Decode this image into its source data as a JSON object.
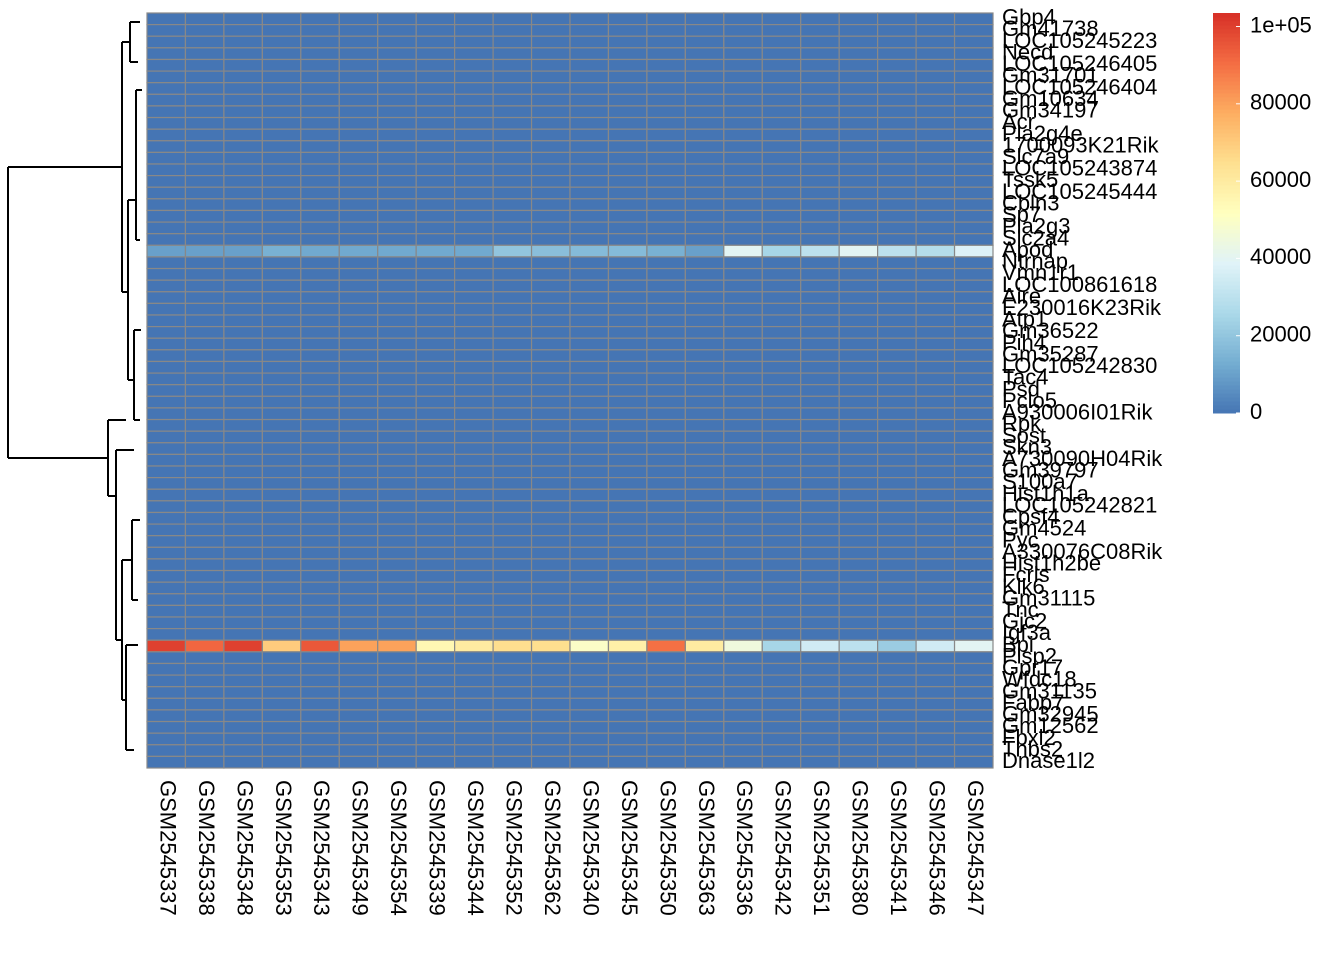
{
  "chart_data": {
    "type": "heatmap",
    "rows": [
      "Gbp4",
      "Gm41738",
      "LOC105245223",
      "Necd",
      "LOC105246405",
      "Gm31701",
      "LOC105246404",
      "Gm10634",
      "Gm34197",
      "Acr",
      "Pla2g4e",
      "1700093K21Rik",
      "Slc7a9",
      "LOC105243874",
      "Tssk5",
      "LOC105245444",
      "Cbln3",
      "Sp7",
      "Pla2g3",
      "Slc2a4",
      "Apod",
      "Ntrnap",
      "Vmn1r1",
      "LOC100861618",
      "Aire",
      "E230016K23Rik",
      "Atp1",
      "Gm36522",
      "Pih4",
      "Gm35287",
      "LOC105242830",
      "Tac4",
      "Psd",
      "Pclo5",
      "A930006I01Rik",
      "Rpk",
      "Sost",
      "Skn3",
      "A730090H04Rik",
      "Gm39797",
      "S100a7",
      "Hist1h1a",
      "LOC105242821",
      "Cpsf4",
      "Gm4524",
      "Pyc",
      "A330076C08Rik",
      "Hist1h2be",
      "Fcrls",
      "Klk6",
      "Gm31115",
      "Tnc",
      "Gjc2",
      "Igf3a",
      "Bpi",
      "Plsp2",
      "Gpr17",
      "Wfdc18",
      "Gm31135",
      "Fabp7",
      "Gm32945",
      "Gm12562",
      "Fbxl2",
      "Thbs2",
      "Dnase1l2"
    ],
    "columns": [
      "GSM2545337",
      "GSM2545338",
      "GSM2545348",
      "GSM2545353",
      "GSM2545343",
      "GSM2545349",
      "GSM2545354",
      "GSM2545339",
      "GSM2545344",
      "GSM2545352",
      "GSM2545362",
      "GSM2545340",
      "GSM2545345",
      "GSM2545350",
      "GSM2545363",
      "GSM2545336",
      "GSM2545342",
      "GSM2545351",
      "GSM2545380",
      "GSM2545341",
      "GSM2545346",
      "GSM2545347"
    ],
    "values": [
      [
        0,
        0,
        0,
        0,
        0,
        0,
        0,
        0,
        0,
        0,
        0,
        0,
        0,
        0,
        0,
        0,
        0,
        0,
        0,
        0,
        0,
        0
      ],
      [
        0,
        0,
        0,
        0,
        0,
        0,
        0,
        0,
        0,
        0,
        0,
        0,
        0,
        0,
        0,
        0,
        0,
        0,
        0,
        0,
        0,
        0
      ],
      [
        0,
        0,
        0,
        0,
        0,
        0,
        0,
        0,
        0,
        0,
        0,
        0,
        0,
        0,
        0,
        0,
        0,
        0,
        0,
        0,
        0,
        0
      ],
      [
        0,
        0,
        0,
        0,
        0,
        0,
        0,
        0,
        0,
        0,
        0,
        0,
        0,
        0,
        0,
        0,
        0,
        0,
        0,
        0,
        0,
        0
      ],
      [
        0,
        0,
        0,
        0,
        0,
        0,
        0,
        0,
        0,
        0,
        0,
        0,
        0,
        0,
        0,
        0,
        0,
        0,
        0,
        0,
        0,
        0
      ],
      [
        0,
        0,
        0,
        0,
        0,
        0,
        0,
        0,
        0,
        0,
        0,
        0,
        0,
        0,
        0,
        0,
        0,
        0,
        0,
        0,
        0,
        0
      ],
      [
        0,
        0,
        0,
        0,
        0,
        0,
        0,
        0,
        0,
        0,
        0,
        0,
        0,
        0,
        0,
        0,
        0,
        0,
        0,
        0,
        0,
        0
      ],
      [
        0,
        0,
        0,
        0,
        0,
        0,
        0,
        0,
        0,
        0,
        0,
        0,
        0,
        0,
        0,
        0,
        0,
        0,
        0,
        0,
        0,
        0
      ],
      [
        0,
        0,
        0,
        0,
        0,
        0,
        0,
        0,
        0,
        0,
        0,
        0,
        0,
        0,
        0,
        0,
        0,
        0,
        0,
        0,
        0,
        0
      ],
      [
        0,
        0,
        0,
        0,
        0,
        0,
        0,
        0,
        0,
        0,
        0,
        0,
        0,
        0,
        0,
        0,
        0,
        0,
        0,
        0,
        0,
        0
      ],
      [
        0,
        0,
        0,
        0,
        0,
        0,
        0,
        0,
        0,
        0,
        0,
        0,
        0,
        0,
        0,
        0,
        0,
        0,
        0,
        0,
        0,
        0
      ],
      [
        0,
        0,
        0,
        0,
        0,
        0,
        0,
        0,
        0,
        0,
        0,
        0,
        0,
        0,
        0,
        0,
        0,
        0,
        0,
        0,
        0,
        0
      ],
      [
        0,
        0,
        0,
        0,
        0,
        0,
        0,
        0,
        0,
        0,
        0,
        0,
        0,
        0,
        0,
        0,
        0,
        0,
        0,
        0,
        0,
        0
      ],
      [
        0,
        0,
        0,
        0,
        0,
        0,
        0,
        0,
        0,
        0,
        0,
        0,
        0,
        0,
        0,
        0,
        0,
        0,
        0,
        0,
        0,
        0
      ],
      [
        0,
        0,
        0,
        0,
        0,
        0,
        0,
        0,
        0,
        0,
        0,
        0,
        0,
        0,
        0,
        0,
        0,
        0,
        0,
        0,
        0,
        0
      ],
      [
        0,
        0,
        0,
        0,
        0,
        0,
        0,
        0,
        0,
        0,
        0,
        0,
        0,
        0,
        0,
        0,
        0,
        0,
        0,
        0,
        0,
        0
      ],
      [
        0,
        0,
        0,
        0,
        0,
        0,
        0,
        0,
        0,
        0,
        0,
        0,
        0,
        0,
        0,
        0,
        0,
        0,
        0,
        0,
        0,
        0
      ],
      [
        0,
        0,
        0,
        0,
        0,
        0,
        0,
        0,
        0,
        0,
        0,
        0,
        0,
        0,
        0,
        0,
        0,
        0,
        0,
        0,
        0,
        0
      ],
      [
        0,
        0,
        0,
        0,
        0,
        0,
        0,
        0,
        0,
        0,
        0,
        0,
        0,
        0,
        0,
        0,
        0,
        0,
        0,
        0,
        0,
        0
      ],
      [
        0,
        0,
        0,
        0,
        0,
        0,
        0,
        0,
        0,
        0,
        0,
        0,
        0,
        0,
        0,
        0,
        0,
        0,
        0,
        0,
        0,
        0
      ],
      [
        10000,
        10000,
        10000,
        14000,
        12000,
        12000,
        12000,
        12000,
        12000,
        20000,
        18000,
        17000,
        17000,
        14000,
        10000,
        40000,
        25000,
        30000,
        40000,
        30000,
        28000,
        38000
      ],
      [
        0,
        0,
        0,
        0,
        0,
        0,
        0,
        0,
        0,
        0,
        0,
        0,
        0,
        0,
        0,
        0,
        0,
        0,
        0,
        0,
        0,
        0
      ],
      [
        0,
        0,
        0,
        0,
        0,
        0,
        0,
        0,
        0,
        0,
        0,
        0,
        0,
        0,
        0,
        0,
        0,
        0,
        0,
        0,
        0,
        0
      ],
      [
        0,
        0,
        0,
        0,
        0,
        0,
        0,
        0,
        0,
        0,
        0,
        0,
        0,
        0,
        0,
        0,
        0,
        0,
        0,
        0,
        0,
        0
      ],
      [
        0,
        0,
        0,
        0,
        0,
        0,
        0,
        0,
        0,
        0,
        0,
        0,
        0,
        0,
        0,
        0,
        0,
        0,
        0,
        0,
        0,
        0
      ],
      [
        0,
        0,
        0,
        0,
        0,
        0,
        0,
        0,
        0,
        0,
        0,
        0,
        0,
        0,
        0,
        0,
        0,
        0,
        0,
        0,
        0,
        0
      ],
      [
        0,
        0,
        0,
        0,
        0,
        0,
        0,
        0,
        0,
        0,
        0,
        0,
        0,
        0,
        0,
        0,
        0,
        0,
        0,
        0,
        0,
        0
      ],
      [
        0,
        0,
        0,
        0,
        0,
        0,
        0,
        0,
        0,
        0,
        0,
        0,
        0,
        0,
        0,
        0,
        0,
        0,
        0,
        0,
        0,
        0
      ],
      [
        0,
        0,
        0,
        0,
        0,
        0,
        0,
        0,
        0,
        0,
        0,
        0,
        0,
        0,
        0,
        0,
        0,
        0,
        0,
        0,
        0,
        0
      ],
      [
        0,
        0,
        0,
        0,
        0,
        0,
        0,
        0,
        0,
        0,
        0,
        0,
        0,
        0,
        0,
        0,
        0,
        0,
        0,
        0,
        0,
        0
      ],
      [
        0,
        0,
        0,
        0,
        0,
        0,
        0,
        0,
        0,
        0,
        0,
        0,
        0,
        0,
        0,
        0,
        0,
        0,
        0,
        0,
        0,
        0
      ],
      [
        0,
        0,
        0,
        0,
        0,
        0,
        0,
        0,
        0,
        0,
        0,
        0,
        0,
        0,
        0,
        0,
        0,
        0,
        0,
        0,
        0,
        0
      ],
      [
        0,
        0,
        0,
        0,
        0,
        0,
        0,
        0,
        0,
        0,
        0,
        0,
        0,
        0,
        0,
        0,
        0,
        0,
        0,
        0,
        0,
        0
      ],
      [
        0,
        0,
        0,
        0,
        0,
        0,
        0,
        0,
        0,
        0,
        0,
        0,
        0,
        0,
        0,
        0,
        0,
        0,
        0,
        0,
        0,
        0
      ],
      [
        0,
        0,
        0,
        0,
        0,
        0,
        0,
        0,
        0,
        0,
        0,
        0,
        0,
        0,
        0,
        0,
        0,
        0,
        0,
        0,
        0,
        0
      ],
      [
        0,
        0,
        0,
        0,
        0,
        0,
        0,
        0,
        0,
        0,
        0,
        0,
        0,
        0,
        0,
        0,
        0,
        0,
        0,
        0,
        0,
        0
      ],
      [
        0,
        0,
        0,
        0,
        0,
        0,
        0,
        0,
        0,
        0,
        0,
        0,
        0,
        0,
        0,
        0,
        0,
        0,
        0,
        0,
        0,
        0
      ],
      [
        0,
        0,
        0,
        0,
        0,
        0,
        0,
        0,
        0,
        0,
        0,
        0,
        0,
        0,
        0,
        0,
        0,
        0,
        0,
        0,
        0,
        0
      ],
      [
        0,
        0,
        0,
        0,
        0,
        0,
        0,
        0,
        0,
        0,
        0,
        0,
        0,
        0,
        0,
        0,
        0,
        0,
        0,
        0,
        0,
        0
      ],
      [
        0,
        0,
        0,
        0,
        0,
        0,
        0,
        0,
        0,
        0,
        0,
        0,
        0,
        0,
        0,
        0,
        0,
        0,
        0,
        0,
        0,
        0
      ],
      [
        0,
        0,
        0,
        0,
        0,
        0,
        0,
        0,
        0,
        0,
        0,
        0,
        0,
        0,
        0,
        0,
        0,
        0,
        0,
        0,
        0,
        0
      ],
      [
        0,
        0,
        0,
        0,
        0,
        0,
        0,
        0,
        0,
        0,
        0,
        0,
        0,
        0,
        0,
        0,
        0,
        0,
        0,
        0,
        0,
        0
      ],
      [
        0,
        0,
        0,
        0,
        0,
        0,
        0,
        0,
        0,
        0,
        0,
        0,
        0,
        0,
        0,
        0,
        0,
        0,
        0,
        0,
        0,
        0
      ],
      [
        0,
        0,
        0,
        0,
        0,
        0,
        0,
        0,
        0,
        0,
        0,
        0,
        0,
        0,
        0,
        0,
        0,
        0,
        0,
        0,
        0,
        0
      ],
      [
        0,
        0,
        0,
        0,
        0,
        0,
        0,
        0,
        0,
        0,
        0,
        0,
        0,
        0,
        0,
        0,
        0,
        0,
        0,
        0,
        0,
        0
      ],
      [
        0,
        0,
        0,
        0,
        0,
        0,
        0,
        0,
        0,
        0,
        0,
        0,
        0,
        0,
        0,
        0,
        0,
        0,
        0,
        0,
        0,
        0
      ],
      [
        0,
        0,
        0,
        0,
        0,
        0,
        0,
        0,
        0,
        0,
        0,
        0,
        0,
        0,
        0,
        0,
        0,
        0,
        0,
        0,
        0,
        0
      ],
      [
        0,
        0,
        0,
        0,
        0,
        0,
        0,
        0,
        0,
        0,
        0,
        0,
        0,
        0,
        0,
        0,
        0,
        0,
        0,
        0,
        0,
        0
      ],
      [
        0,
        0,
        0,
        0,
        0,
        0,
        0,
        0,
        0,
        0,
        0,
        0,
        0,
        0,
        0,
        0,
        0,
        0,
        0,
        0,
        0,
        0
      ],
      [
        0,
        0,
        0,
        0,
        0,
        0,
        0,
        0,
        0,
        0,
        0,
        0,
        0,
        0,
        0,
        0,
        0,
        0,
        0,
        0,
        0,
        0
      ],
      [
        0,
        0,
        0,
        0,
        0,
        0,
        0,
        0,
        0,
        0,
        0,
        0,
        0,
        0,
        0,
        0,
        0,
        0,
        0,
        0,
        0,
        0
      ],
      [
        0,
        0,
        0,
        0,
        0,
        0,
        0,
        0,
        0,
        0,
        0,
        0,
        0,
        0,
        0,
        0,
        0,
        0,
        0,
        0,
        0,
        0
      ],
      [
        0,
        0,
        0,
        0,
        0,
        0,
        0,
        0,
        0,
        0,
        0,
        0,
        0,
        0,
        0,
        0,
        0,
        0,
        0,
        0,
        0,
        0
      ],
      [
        0,
        0,
        0,
        0,
        0,
        0,
        0,
        0,
        0,
        0,
        0,
        0,
        0,
        0,
        0,
        0,
        0,
        0,
        0,
        0,
        0,
        0
      ],
      [
        100000,
        92000,
        100000,
        70000,
        95000,
        80000,
        80000,
        55000,
        60000,
        65000,
        65000,
        50000,
        58000,
        90000,
        60000,
        45000,
        25000,
        35000,
        30000,
        22000,
        35000,
        40000
      ],
      [
        0,
        0,
        0,
        0,
        0,
        0,
        0,
        0,
        0,
        0,
        0,
        0,
        0,
        0,
        0,
        0,
        0,
        0,
        0,
        0,
        0,
        0
      ],
      [
        0,
        0,
        0,
        0,
        0,
        0,
        0,
        0,
        0,
        0,
        0,
        0,
        0,
        0,
        0,
        0,
        0,
        0,
        0,
        0,
        0,
        0
      ],
      [
        0,
        0,
        0,
        0,
        0,
        0,
        0,
        0,
        0,
        0,
        0,
        0,
        0,
        0,
        0,
        0,
        0,
        0,
        0,
        0,
        0,
        0
      ],
      [
        0,
        0,
        0,
        0,
        0,
        0,
        0,
        0,
        0,
        0,
        0,
        0,
        0,
        0,
        0,
        0,
        0,
        0,
        0,
        0,
        0,
        0
      ],
      [
        0,
        0,
        0,
        0,
        0,
        0,
        0,
        0,
        0,
        0,
        0,
        0,
        0,
        0,
        0,
        0,
        0,
        0,
        0,
        0,
        0,
        0
      ],
      [
        0,
        0,
        0,
        0,
        0,
        0,
        0,
        0,
        0,
        0,
        0,
        0,
        0,
        0,
        0,
        0,
        0,
        0,
        0,
        0,
        0,
        0
      ],
      [
        0,
        0,
        0,
        0,
        0,
        0,
        0,
        0,
        0,
        0,
        0,
        0,
        0,
        0,
        0,
        0,
        0,
        0,
        0,
        0,
        0,
        0
      ],
      [
        0,
        0,
        0,
        0,
        0,
        0,
        0,
        0,
        0,
        0,
        0,
        0,
        0,
        0,
        0,
        0,
        0,
        0,
        0,
        0,
        0,
        0
      ],
      [
        0,
        0,
        0,
        0,
        0,
        0,
        0,
        0,
        0,
        0,
        0,
        0,
        0,
        0,
        0,
        0,
        0,
        0,
        0,
        0,
        0,
        0
      ],
      [
        0,
        0,
        0,
        0,
        0,
        0,
        0,
        0,
        0,
        0,
        0,
        0,
        0,
        0,
        0,
        0,
        0,
        0,
        0,
        0,
        0,
        0
      ]
    ],
    "clim": [
      0,
      103500
    ],
    "cticks": [
      0,
      20000,
      40000,
      60000,
      80000,
      {
        "value": 100000,
        "label": "1e+05"
      }
    ],
    "colors": [
      "#4575b4",
      "#74add1",
      "#abd9e9",
      "#e0f3f8",
      "#ffffbf",
      "#fee090",
      "#fdae61",
      "#f46d43",
      "#d73027"
    ],
    "cell_border": "#888888"
  }
}
